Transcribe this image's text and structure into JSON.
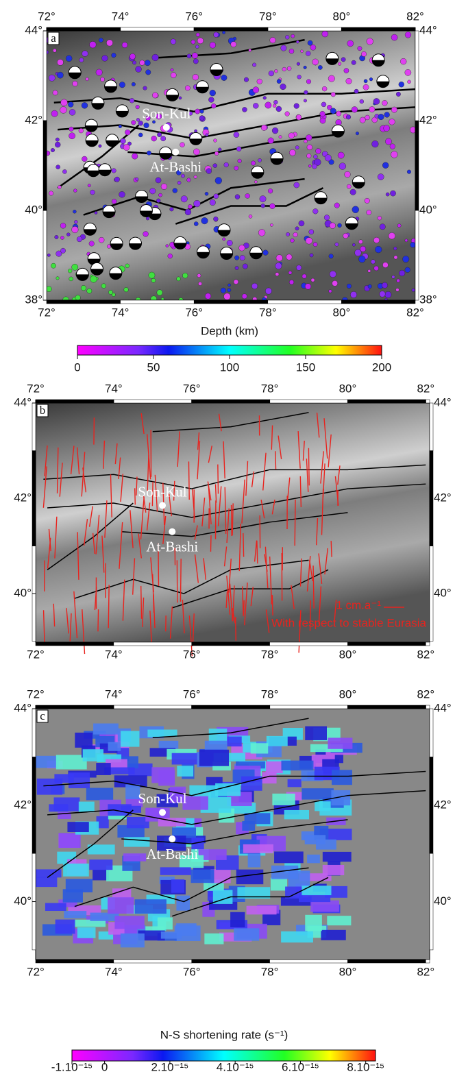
{
  "panels": [
    {
      "label": "a",
      "lonlim": [
        72,
        82
      ],
      "latlim": [
        38,
        44
      ],
      "xticks": [
        {
          "value": 72,
          "label": "72°"
        },
        {
          "value": 74,
          "label": "74°"
        },
        {
          "value": 76,
          "label": "76°"
        },
        {
          "value": 78,
          "label": "78°"
        },
        {
          "value": 80,
          "label": "80°"
        },
        {
          "value": 82,
          "label": "82°"
        }
      ],
      "yticks": [
        {
          "value": 44,
          "label": "44°"
        },
        {
          "value": 42,
          "label": "42°"
        },
        {
          "value": 40,
          "label": "40°"
        },
        {
          "value": 38,
          "label": "38°"
        }
      ],
      "places": [
        "Son-Kul",
        "At-Bashi"
      ]
    },
    {
      "label": "b",
      "lonlim": [
        72,
        82.1
      ],
      "latlim": [
        38.98,
        44
      ],
      "xticks": [
        {
          "value": 72,
          "label": "72°"
        },
        {
          "value": 74,
          "label": "74°"
        },
        {
          "value": 76,
          "label": "76°"
        },
        {
          "value": 78,
          "label": "78°"
        },
        {
          "value": 80,
          "label": "80°"
        },
        {
          "value": 82,
          "label": "82°"
        }
      ],
      "yticks": [
        {
          "value": 44,
          "label": "44°"
        },
        {
          "value": 42,
          "label": "42°"
        },
        {
          "value": 40,
          "label": "40°"
        }
      ],
      "places": [
        "Son-Kul",
        "At-Bashi"
      ]
    },
    {
      "label": "c",
      "lonlim": [
        72,
        82.1
      ],
      "latlim": [
        38.8,
        44
      ],
      "xticks": [
        {
          "value": 72,
          "label": "72°"
        },
        {
          "value": 74,
          "label": "74°"
        },
        {
          "value": 76,
          "label": "76°"
        },
        {
          "value": 78,
          "label": "78°"
        },
        {
          "value": 80,
          "label": "80°"
        },
        {
          "value": 82,
          "label": "82°"
        }
      ],
      "yticks": [
        {
          "value": 44,
          "label": "44°"
        },
        {
          "value": 42,
          "label": "42°"
        },
        {
          "value": 40,
          "label": "40°"
        }
      ],
      "places": [
        "Son-Kul",
        "At-Bashi"
      ]
    }
  ],
  "depth_colorbar": {
    "title": "Depth (km)",
    "range": [
      0,
      200
    ],
    "ticks": [
      0,
      50,
      100,
      150,
      200
    ]
  },
  "velocity_legend": {
    "scale": "1 cm.a⁻¹",
    "reference": "With respect to stable Eurasia"
  },
  "rate_colorbar": {
    "title": "N-S shortening rate (s⁻¹)",
    "range": [
      -1e-15,
      8.3e-15
    ],
    "ticks": [
      {
        "value": -1e-15,
        "label": "-1.10⁻¹⁵"
      },
      {
        "value": 0,
        "label": "0"
      },
      {
        "value": 2e-15,
        "label": "2.10⁻¹⁵"
      },
      {
        "value": 4e-15,
        "label": "4.10⁻¹⁵"
      },
      {
        "value": 6e-15,
        "label": "6.10⁻¹⁵"
      },
      {
        "value": 8e-15,
        "label": "8.10⁻¹⁵"
      }
    ]
  }
}
